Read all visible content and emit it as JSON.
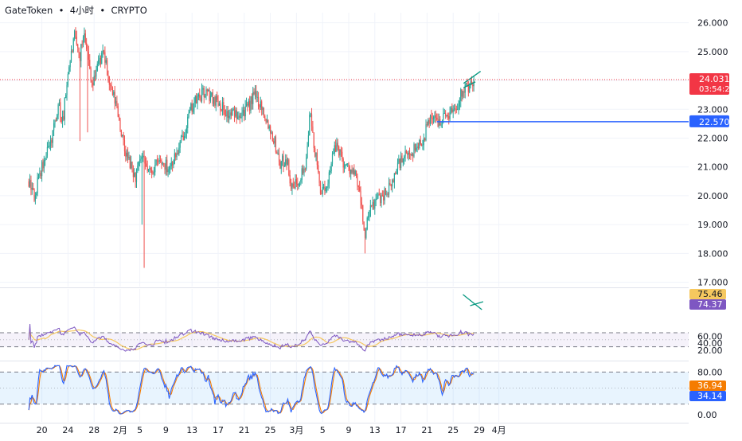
{
  "header": {
    "symbol": "GateToken",
    "sep1": "•",
    "interval": "4小时",
    "sep2": "•",
    "market": "CRYPTO"
  },
  "colors": {
    "up": "#26a69a",
    "down": "#ef5350",
    "rsi_line": "#7e57c2",
    "rsi_ma": "#f6c85f",
    "stoch_k": "#2962ff",
    "stoch_d": "#f57c00",
    "level_line": "#2962ff",
    "price_line": "#f23645",
    "trend_line": "#089981",
    "rsi_band": "#7e57c2",
    "stoch_band": "#2196f3"
  },
  "chart_data": [
    {
      "type": "candlestick",
      "name": "price",
      "y_ticks": [
        "26.000",
        "25.000",
        "24.000",
        "23.000",
        "22.000",
        "21.000",
        "20.000",
        "19.000",
        "18.000",
        "17.000"
      ],
      "ylim": [
        16.85,
        26.35
      ],
      "x_ticks": [
        "20",
        "24",
        "28",
        "2月",
        "5",
        "9",
        "13",
        "17",
        "21",
        "25",
        "3月",
        "5",
        "9",
        "13",
        "17",
        "21",
        "25",
        "29",
        "4月"
      ],
      "x_tick_days": [
        -12,
        -8,
        -4,
        0,
        3,
        7,
        11,
        15,
        19,
        23,
        27,
        31,
        35,
        39,
        43,
        47,
        51,
        55,
        58
      ],
      "last_price": {
        "value": 24.031,
        "label": "24.031",
        "countdown": "03:54:22"
      },
      "level": {
        "value": 22.57,
        "label": "22.570",
        "from_day": 48.5
      },
      "anchors": [
        {
          "day": -14.0,
          "price": 20.5
        },
        {
          "day": -13.0,
          "price": 19.9
        },
        {
          "day": -12.5,
          "price": 20.7
        },
        {
          "day": -11.5,
          "price": 21.2
        },
        {
          "day": -10.5,
          "price": 22.0
        },
        {
          "day": -9.5,
          "price": 23.2
        },
        {
          "day": -8.8,
          "price": 22.5
        },
        {
          "day": -8.0,
          "price": 24.3
        },
        {
          "day": -7.0,
          "price": 25.5
        },
        {
          "day": -6.2,
          "price": 24.8
        },
        {
          "day": -5.5,
          "price": 25.8
        },
        {
          "day": -4.8,
          "price": 24.6
        },
        {
          "day": -4.2,
          "price": 23.8
        },
        {
          "day": -3.5,
          "price": 24.6
        },
        {
          "day": -2.5,
          "price": 24.9
        },
        {
          "day": -1.5,
          "price": 23.7
        },
        {
          "day": -0.5,
          "price": 23.1
        },
        {
          "day": 0.6,
          "price": 21.6
        },
        {
          "day": 1.5,
          "price": 21.1
        },
        {
          "day": 2.3,
          "price": 20.6
        },
        {
          "day": 3.2,
          "price": 21.3
        },
        {
          "day": 4.5,
          "price": 20.8
        },
        {
          "day": 6.0,
          "price": 21.2
        },
        {
          "day": 7.5,
          "price": 21.0
        },
        {
          "day": 9.0,
          "price": 21.6
        },
        {
          "day": 10.0,
          "price": 22.4
        },
        {
          "day": 11.0,
          "price": 23.1
        },
        {
          "day": 12.0,
          "price": 23.4
        },
        {
          "day": 13.0,
          "price": 23.6
        },
        {
          "day": 14.0,
          "price": 23.4
        },
        {
          "day": 15.0,
          "price": 23.3
        },
        {
          "day": 16.5,
          "price": 22.8
        },
        {
          "day": 18.0,
          "price": 22.9
        },
        {
          "day": 19.5,
          "price": 23.0
        },
        {
          "day": 20.5,
          "price": 23.5
        },
        {
          "day": 21.5,
          "price": 23.2
        },
        {
          "day": 22.5,
          "price": 22.6
        },
        {
          "day": 23.5,
          "price": 22.0
        },
        {
          "day": 24.5,
          "price": 21.1
        },
        {
          "day": 25.5,
          "price": 21.3
        },
        {
          "day": 26.3,
          "price": 20.2
        },
        {
          "day": 27.3,
          "price": 20.6
        },
        {
          "day": 28.5,
          "price": 21.1
        },
        {
          "day": 29.0,
          "price": 22.9
        },
        {
          "day": 29.8,
          "price": 21.6
        },
        {
          "day": 30.6,
          "price": 20.3
        },
        {
          "day": 31.4,
          "price": 20.0
        },
        {
          "day": 32.3,
          "price": 21.2
        },
        {
          "day": 33.2,
          "price": 21.8
        },
        {
          "day": 34.3,
          "price": 21.1
        },
        {
          "day": 35.3,
          "price": 20.9
        },
        {
          "day": 36.2,
          "price": 20.6
        },
        {
          "day": 37.0,
          "price": 19.6
        },
        {
          "day": 37.5,
          "price": 18.5
        },
        {
          "day": 38.0,
          "price": 19.3
        },
        {
          "day": 39.0,
          "price": 19.8
        },
        {
          "day": 40.0,
          "price": 20.0
        },
        {
          "day": 41.5,
          "price": 20.3
        },
        {
          "day": 42.5,
          "price": 21.1
        },
        {
          "day": 44.0,
          "price": 21.4
        },
        {
          "day": 45.0,
          "price": 21.6
        },
        {
          "day": 46.5,
          "price": 22.0
        },
        {
          "day": 47.5,
          "price": 22.8
        },
        {
          "day": 48.5,
          "price": 22.6
        },
        {
          "day": 50.0,
          "price": 22.8
        },
        {
          "day": 51.5,
          "price": 23.1
        },
        {
          "day": 52.6,
          "price": 23.8
        },
        {
          "day": 53.5,
          "price": 23.7
        },
        {
          "day": 54.3,
          "price": 24.0
        }
      ]
    },
    {
      "type": "line",
      "name": "RSI",
      "y_ticks": [
        "60.00",
        "40.00",
        "20.00"
      ],
      "upper": 70,
      "lower": 30,
      "middle": 50,
      "values": {
        "rsi": 74.37,
        "rsi_label": "74.37",
        "ma_label": "75.46"
      }
    },
    {
      "type": "line",
      "name": "Stochastic",
      "y_ticks": [
        "80.00",
        "0.00"
      ],
      "upper": 80,
      "lower": 20,
      "middle": 50,
      "values": {
        "k_label": "34.14",
        "d_label": "36.94"
      }
    }
  ]
}
